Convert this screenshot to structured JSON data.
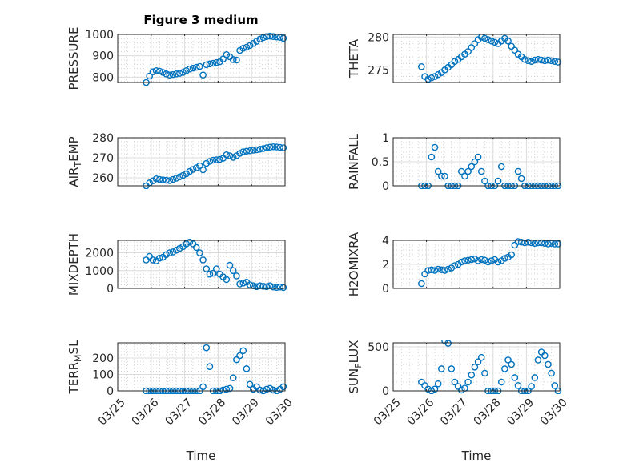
{
  "title": "Figure 3 medium",
  "xlabel": "Time",
  "colors": {
    "marker": "#0072BD",
    "axis": "#262626",
    "grid": "#dcdcdc"
  },
  "chart_data": {
    "type": "scatter",
    "x_unit": "days since 03/25",
    "x_ticks": [
      0,
      1,
      2,
      3,
      4,
      5
    ],
    "x_tick_labels": [
      "03/25",
      "03/26",
      "03/27",
      "03/28",
      "03/29",
      "03/30"
    ],
    "xlim": [
      0,
      5
    ],
    "grid": true,
    "x": [
      0.85,
      0.95,
      1.05,
      1.15,
      1.25,
      1.35,
      1.45,
      1.55,
      1.65,
      1.75,
      1.85,
      1.95,
      2.05,
      2.15,
      2.25,
      2.35,
      2.45,
      2.55,
      2.65,
      2.75,
      2.85,
      2.95,
      3.05,
      3.15,
      3.25,
      3.35,
      3.45,
      3.55,
      3.65,
      3.75,
      3.85,
      3.95,
      4.05,
      4.15,
      4.25,
      4.35,
      4.45,
      4.55,
      4.65,
      4.75,
      4.85,
      4.95
    ],
    "panels": [
      {
        "ylabel": "PRESSURE",
        "ylim": [
          775,
          1000
        ],
        "yticks": [
          800,
          900,
          1000
        ],
        "ytick_labels": [
          "800",
          "900",
          "1000"
        ],
        "values": [
          775,
          805,
          825,
          830,
          828,
          822,
          815,
          810,
          812,
          815,
          818,
          822,
          830,
          838,
          842,
          846,
          850,
          810,
          858,
          862,
          865,
          868,
          872,
          885,
          905,
          895,
          882,
          880,
          925,
          935,
          940,
          948,
          958,
          968,
          978,
          985,
          990,
          992,
          990,
          988,
          986,
          982
        ]
      },
      {
        "ylabel": "THETA",
        "ylim": [
          273.1,
          280.4
        ],
        "yticks": [
          275,
          280
        ],
        "ytick_labels": [
          "275",
          "280"
        ],
        "values": [
          275.5,
          274,
          273.6,
          273.8,
          274,
          274.3,
          274.6,
          275,
          275.4,
          275.8,
          276.3,
          276.6,
          277,
          277.4,
          277.8,
          278.4,
          279,
          279.6,
          280,
          279.8,
          279.6,
          279.4,
          279.2,
          279,
          279.4,
          279.8,
          279.4,
          278.6,
          278,
          277.4,
          277,
          276.6,
          276.4,
          276.3,
          276.5,
          276.6,
          276.5,
          276.4,
          276.5,
          276.4,
          276.3,
          276.2
        ]
      },
      {
        "ylabel": "AIR_TEMP",
        "ylim": [
          256,
          280
        ],
        "yticks": [
          260,
          270,
          280
        ],
        "ytick_labels": [
          "260",
          "270",
          "280"
        ],
        "values": [
          256,
          257.5,
          258.5,
          259.5,
          259.2,
          259,
          258.8,
          258.6,
          259.2,
          259.8,
          260.5,
          261.2,
          262,
          263.2,
          264.2,
          265,
          266,
          264,
          267.2,
          268.2,
          268.8,
          269,
          269.2,
          269.8,
          271.5,
          271,
          270.2,
          271,
          272.2,
          273,
          273.3,
          273.5,
          273.8,
          274,
          274.3,
          274.6,
          275,
          275.3,
          275.5,
          275.4,
          275.2,
          275
        ]
      },
      {
        "ylabel": "RAINFALL",
        "ylim": [
          0,
          1
        ],
        "yticks": [
          0,
          0.5,
          1
        ],
        "ytick_labels": [
          "0",
          "0.5",
          "1"
        ],
        "values": [
          0,
          0,
          0,
          0.6,
          0.8,
          0.3,
          0.2,
          0.2,
          0,
          0,
          0,
          0,
          0.3,
          0.2,
          0.3,
          0.4,
          0.5,
          0.6,
          0.3,
          0.1,
          0,
          0,
          0,
          0.1,
          0.4,
          0,
          0,
          0,
          0,
          0.3,
          0.15,
          0,
          0,
          0,
          0,
          0,
          0,
          0,
          0,
          0,
          0,
          0
        ]
      },
      {
        "ylabel": "MIXDEPTH",
        "ylim": [
          0,
          2700
        ],
        "yticks": [
          0,
          1000,
          2000
        ],
        "ytick_labels": [
          "0",
          "1000",
          "2000"
        ],
        "values": [
          1600,
          1800,
          1600,
          1550,
          1700,
          1750,
          1900,
          2000,
          2050,
          2150,
          2250,
          2350,
          2500,
          2600,
          2500,
          2300,
          2000,
          1600,
          1100,
          800,
          850,
          1100,
          800,
          650,
          500,
          1300,
          1000,
          700,
          250,
          300,
          350,
          200,
          150,
          100,
          150,
          120,
          100,
          150,
          80,
          60,
          80,
          50
        ]
      },
      {
        "ylabel": "H2OMIXRA",
        "ylim": [
          0,
          4
        ],
        "yticks": [
          0,
          2,
          4
        ],
        "ytick_labels": [
          "0",
          "2",
          "4"
        ],
        "values": [
          0.4,
          1.2,
          1.5,
          1.55,
          1.5,
          1.6,
          1.55,
          1.5,
          1.6,
          1.7,
          1.9,
          2.0,
          2.2,
          2.3,
          2.35,
          2.4,
          2.45,
          2.3,
          2.4,
          2.35,
          2.2,
          2.3,
          2.4,
          2.2,
          2.3,
          2.5,
          2.6,
          2.8,
          3.6,
          3.9,
          3.85,
          3.8,
          3.85,
          3.8,
          3.75,
          3.8,
          3.8,
          3.75,
          3.7,
          3.75,
          3.7,
          3.7
        ]
      },
      {
        "ylabel": "TERR_MSL",
        "ylim": [
          0,
          293
        ],
        "yticks": [
          0,
          100,
          200
        ],
        "ytick_labels": [
          "0",
          "100",
          "200"
        ],
        "values": [
          0,
          0,
          0,
          0,
          0,
          0,
          0,
          0,
          0,
          0,
          0,
          0,
          0,
          0,
          0,
          0,
          0,
          25,
          263,
          148,
          0,
          0,
          0,
          5,
          10,
          15,
          80,
          190,
          215,
          245,
          135,
          40,
          10,
          25,
          5,
          0,
          10,
          15,
          5,
          0,
          10,
          25
        ]
      },
      {
        "ylabel": "SUN_FLUX",
        "ylim": [
          0,
          545
        ],
        "yticks": [
          0,
          500
        ],
        "ytick_labels": [
          "0",
          "500"
        ],
        "values": [
          100,
          60,
          20,
          0,
          20,
          80,
          250,
          570,
          540,
          250,
          100,
          50,
          10,
          30,
          100,
          180,
          270,
          330,
          380,
          200,
          0,
          0,
          0,
          0,
          100,
          250,
          350,
          300,
          150,
          60,
          0,
          0,
          0,
          50,
          150,
          350,
          440,
          400,
          300,
          200,
          60,
          0
        ]
      }
    ]
  }
}
